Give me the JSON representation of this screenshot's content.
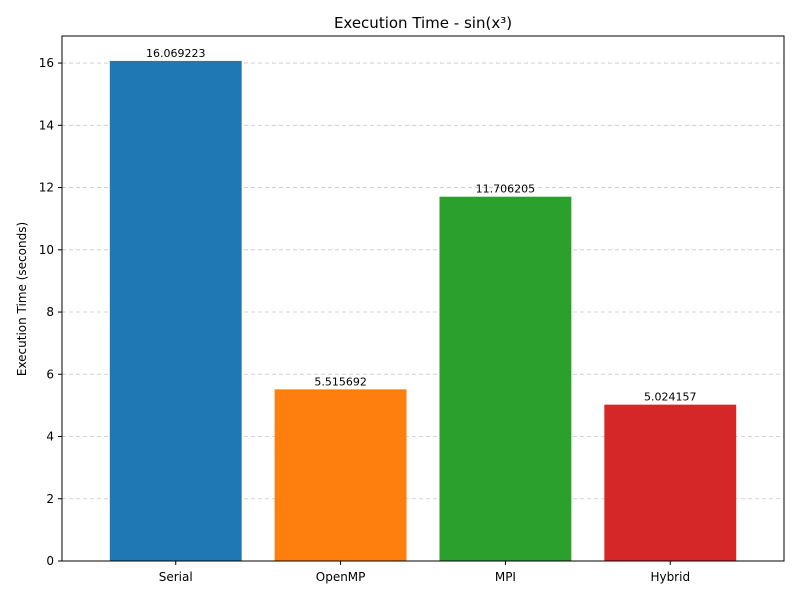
{
  "chart_data": {
    "type": "bar",
    "title": "Execution Time - sin(x³)",
    "xlabel": "",
    "ylabel": "Execution Time (seconds)",
    "categories": [
      "Serial",
      "OpenMP",
      "MPI",
      "Hybrid"
    ],
    "values": [
      16.069223,
      5.515692,
      11.706205,
      5.024157
    ],
    "value_labels": [
      "16.069223",
      "5.515692",
      "11.706205",
      "5.024157"
    ],
    "colors": [
      "#1f77b4",
      "#ff7f0e",
      "#2ca02c",
      "#d62728"
    ],
    "ylim": [
      0,
      16.87
    ],
    "yticks": [
      0,
      2,
      4,
      6,
      8,
      10,
      12,
      14,
      16
    ],
    "grid": "y-dashed",
    "legend": "none"
  }
}
